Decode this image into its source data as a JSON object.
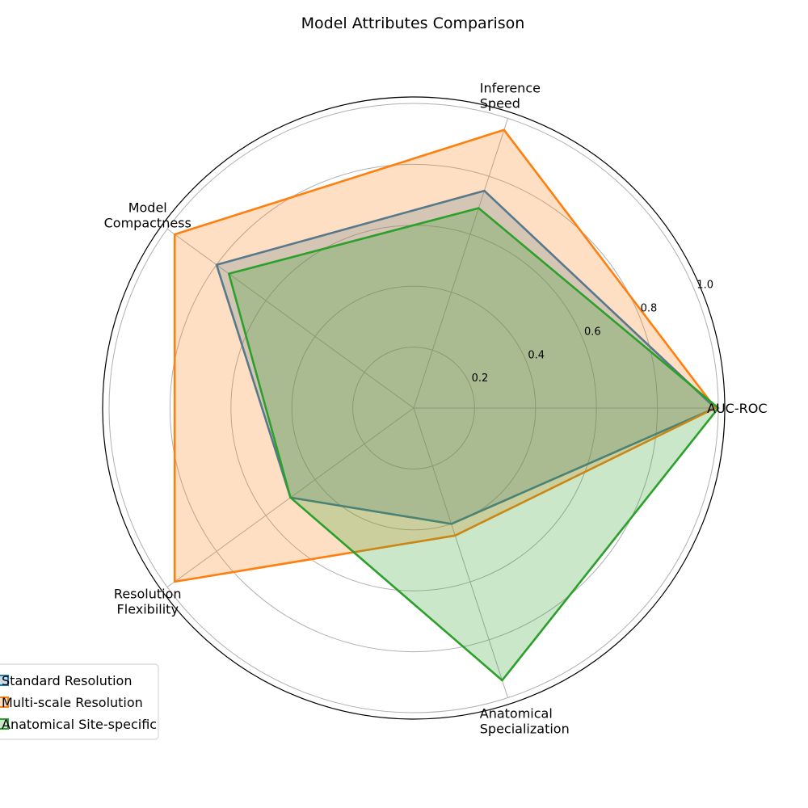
{
  "chart_data": {
    "type": "radar",
    "title": "Model Attributes Comparison",
    "axes": [
      [
        "AUC-ROC"
      ],
      [
        "Inference",
        "Speed"
      ],
      [
        "Model",
        "Compactness"
      ],
      [
        "Resolution",
        "Flexibility"
      ],
      [
        "Anatomical",
        "Specialization"
      ]
    ],
    "rlim": [
      0,
      1.0
    ],
    "rticks": [
      "0.2",
      "0.4",
      "0.6",
      "0.8",
      "1.0"
    ],
    "rtick_values": [
      0.2,
      0.4,
      0.6,
      0.8,
      1.0
    ],
    "grid": true,
    "legend_position": "lower-left",
    "series": [
      {
        "name": "Standard Resolution",
        "color": "#1f77b4",
        "values": [
          0.99,
          0.75,
          0.8,
          0.5,
          0.4
        ]
      },
      {
        "name": "Multi-scale Resolution",
        "color": "#ff7f0e",
        "values": [
          0.99,
          0.96,
          0.97,
          0.97,
          0.44
        ]
      },
      {
        "name": "Anatomical Site-specific",
        "color": "#2ca02c",
        "values": [
          1.0,
          0.69,
          0.75,
          0.5,
          0.94
        ]
      }
    ]
  }
}
